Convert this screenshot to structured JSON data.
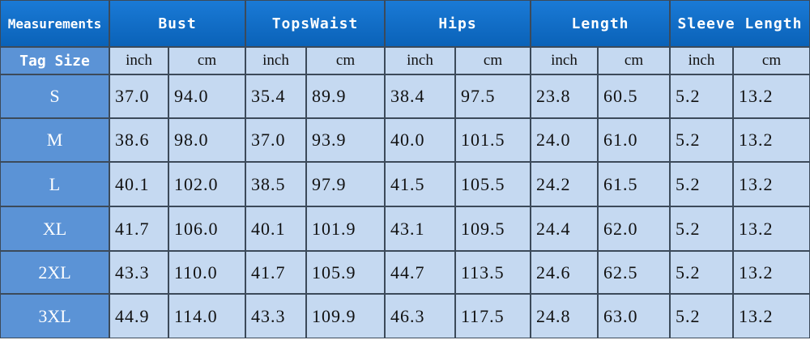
{
  "header": {
    "corner": "Measurements",
    "columns": [
      "Bust",
      "TopsWaist",
      "Hips",
      "Length",
      "Sleeve Length"
    ]
  },
  "subheader": {
    "label": "Tag Size",
    "units": [
      "inch",
      "cm",
      "inch",
      "cm",
      "inch",
      "cm",
      "inch",
      "cm",
      "inch",
      "cm"
    ]
  },
  "rows": [
    {
      "size": "S",
      "values": [
        "37.0",
        "94.0",
        "35.4",
        "89.9",
        "38.4",
        "97.5",
        "23.8",
        "60.5",
        "5.2",
        "13.2"
      ]
    },
    {
      "size": "M",
      "values": [
        "38.6",
        "98.0",
        "37.0",
        "93.9",
        "40.0",
        "101.5",
        "24.0",
        "61.0",
        "5.2",
        "13.2"
      ]
    },
    {
      "size": "L",
      "values": [
        "40.1",
        "102.0",
        "38.5",
        "97.9",
        "41.5",
        "105.5",
        "24.2",
        "61.5",
        "5.2",
        "13.2"
      ]
    },
    {
      "size": "XL",
      "values": [
        "41.7",
        "106.0",
        "40.1",
        "101.9",
        "43.1",
        "109.5",
        "24.4",
        "62.0",
        "5.2",
        "13.2"
      ]
    },
    {
      "size": "2XL",
      "values": [
        "43.3",
        "110.0",
        "41.7",
        "105.9",
        "44.7",
        "113.5",
        "24.6",
        "62.5",
        "5.2",
        "13.2"
      ]
    },
    {
      "size": "3XL",
      "values": [
        "44.9",
        "114.0",
        "43.3",
        "109.9",
        "46.3",
        "117.5",
        "24.8",
        "63.0",
        "5.2",
        "13.2"
      ]
    }
  ]
}
